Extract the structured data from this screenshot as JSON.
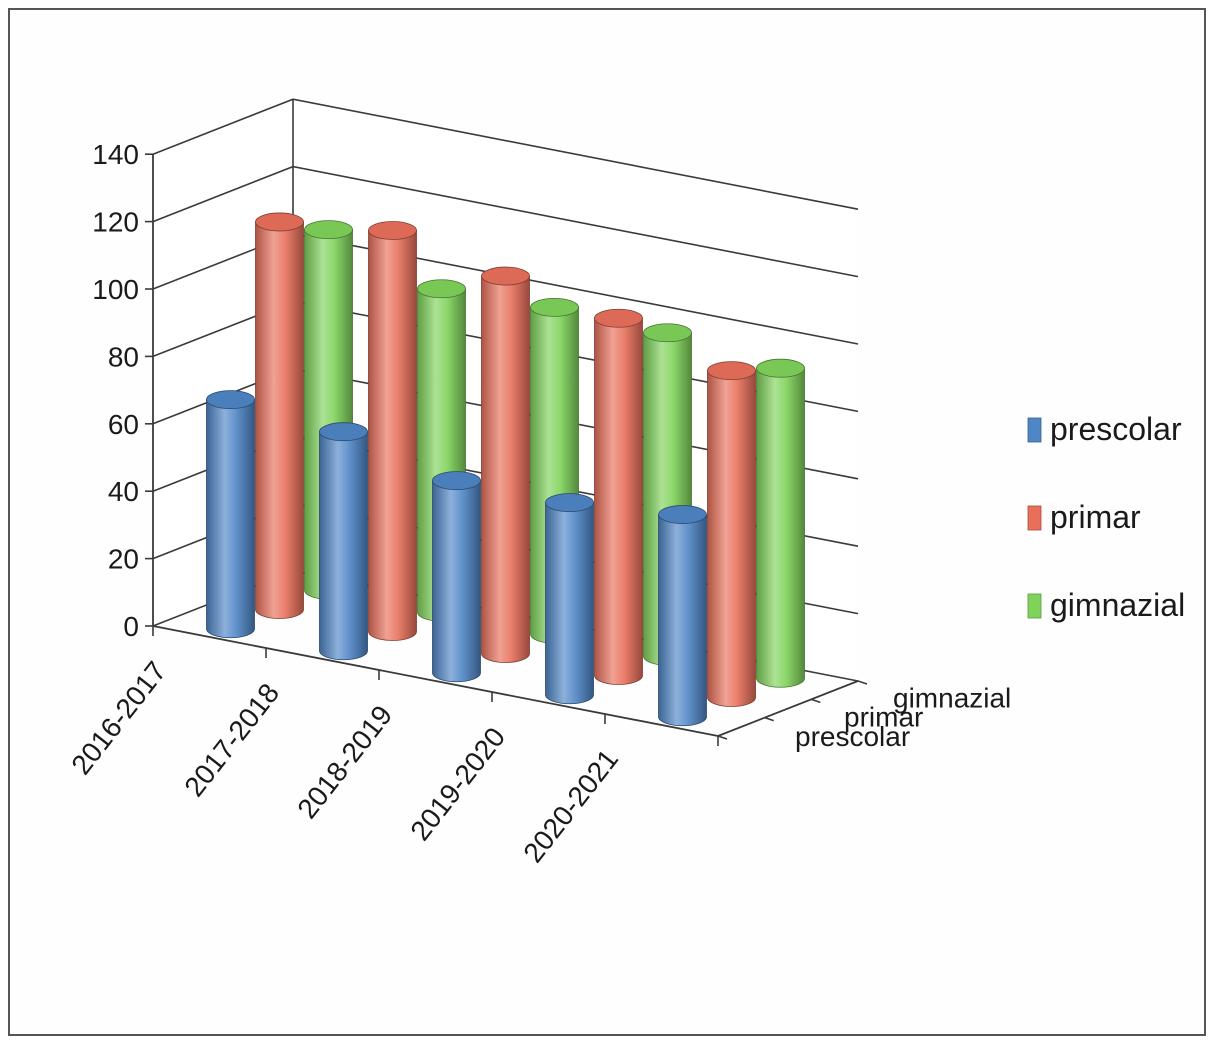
{
  "chart_data": {
    "type": "bar",
    "subtype": "3d-cylinder",
    "title": "",
    "xlabel": "",
    "ylabel": "",
    "categories": [
      "2016-2017",
      "2017-2018",
      "2018-2019",
      "2019-2020",
      "2020-2021"
    ],
    "series": [
      {
        "name": "prescolar",
        "color": "#4f86c6",
        "values": [
          68,
          65,
          57,
          57,
          60
        ]
      },
      {
        "name": "primar",
        "color": "#e8705a",
        "values": [
          115,
          119,
          112,
          106,
          97
        ]
      },
      {
        "name": "gimnazial",
        "color": "#7fd35a",
        "values": [
          107,
          96,
          97,
          96,
          92
        ]
      }
    ],
    "ylim": [
      0,
      140
    ],
    "yticks": [
      0,
      20,
      40,
      60,
      80,
      100,
      120,
      140
    ],
    "depth_labels": [
      "gimnazial",
      "primar",
      "prescolar"
    ],
    "grid": true,
    "legend": {
      "position": "right",
      "entries": [
        "prescolar",
        "primar",
        "gimnazial"
      ]
    }
  }
}
